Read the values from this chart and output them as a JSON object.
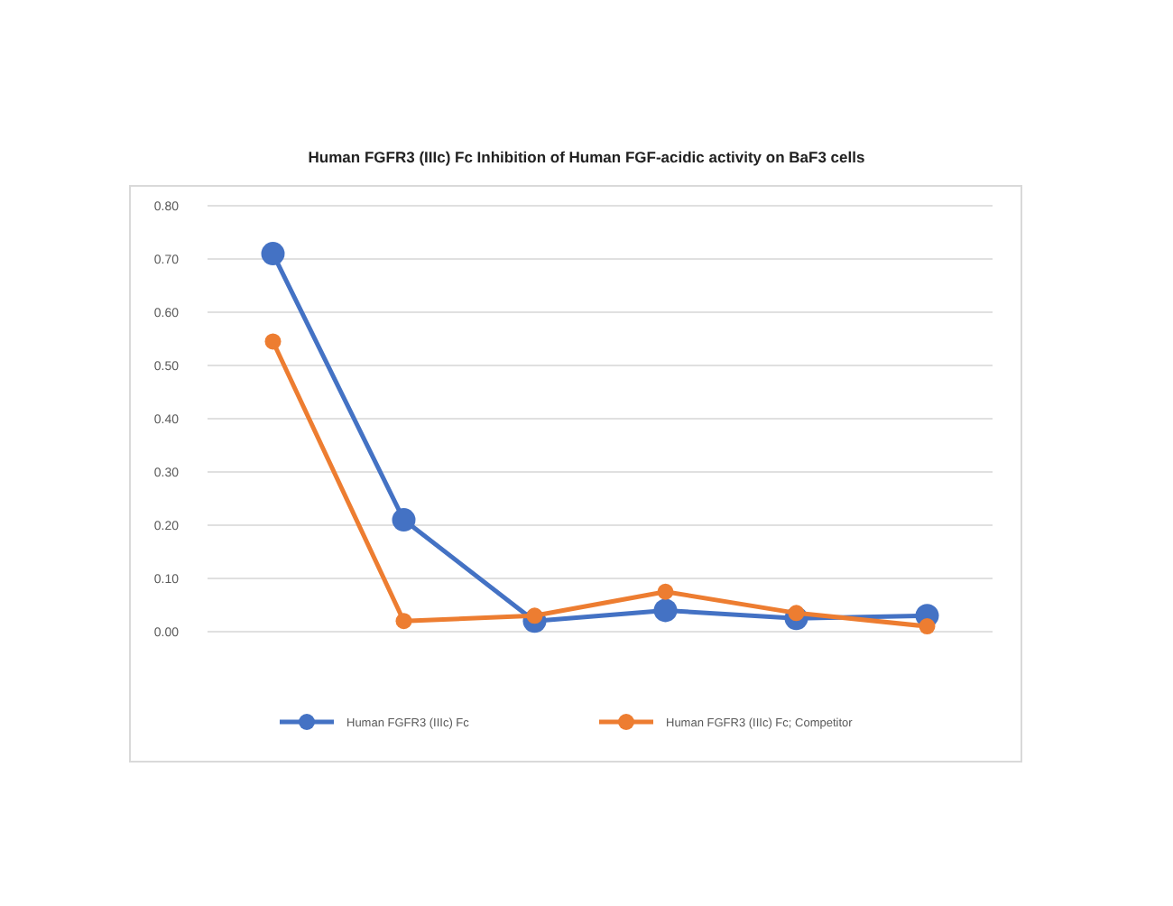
{
  "chart_data": {
    "type": "line",
    "title": "Human FGFR3 (IIIc) Fc Inhibition of Human FGF-acidic activity on BaF3 cells",
    "categories": [
      null,
      null,
      null,
      null,
      null,
      null
    ],
    "series": [
      {
        "name": "Human FGFR3 (IIIc) Fc",
        "color": "#4472c4",
        "values": [
          0.71,
          0.21,
          0.02,
          0.04,
          0.025,
          0.03
        ]
      },
      {
        "name": "Human FGFR3 (IIIc) Fc; Competitor",
        "color": "#ed7d31",
        "values": [
          0.545,
          0.02,
          0.03,
          0.075,
          0.035,
          0.01
        ]
      }
    ],
    "ylim": [
      0,
      0.8
    ],
    "yticks": [
      {
        "value": 0,
        "label": "0.00"
      },
      {
        "value": 0.1,
        "label": "0.10"
      },
      {
        "value": 0.2,
        "label": "0.20"
      },
      {
        "value": 0.3,
        "label": "0.30"
      },
      {
        "value": 0.4,
        "label": "0.40"
      },
      {
        "value": 0.5,
        "label": "0.50"
      },
      {
        "value": 0.6,
        "label": "0.60"
      },
      {
        "value": 0.7,
        "label": "0.70"
      },
      {
        "value": 0.8,
        "label": "0.80"
      }
    ],
    "grid": "y",
    "legend": "bottom",
    "marker": "circle",
    "line_style": "solid"
  }
}
